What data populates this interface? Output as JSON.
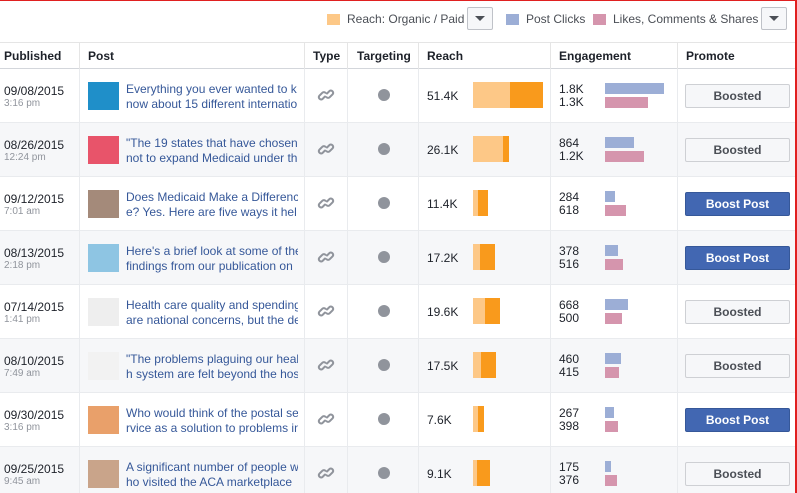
{
  "legend": {
    "reach_label": "Reach: Organic / Paid",
    "clicks_label": "Post Clicks",
    "likes_label": "Likes, Comments & Shares",
    "colors": {
      "organic": "#fdc887",
      "paid": "#f99a1c",
      "clicks": "#9caed6",
      "likes": "#d595ad"
    }
  },
  "columns": {
    "published": "Published",
    "post": "Post",
    "type": "Type",
    "targeting": "Targeting",
    "reach": "Reach",
    "engagement": "Engagement",
    "promote": "Promote"
  },
  "rows": [
    {
      "date": "09/08/2015",
      "time": "3:16 pm",
      "line1": "Everything you ever wanted to k",
      "line2": "now about 15 different internatio",
      "reach": "51.4K",
      "organic": 0.37,
      "paid": 0.33,
      "clicks": "1.8K",
      "likes": "1.3K",
      "clicks_frac": 0.59,
      "likes_frac": 0.43,
      "promote": "Boosted",
      "boosted": true,
      "thumb": "#1f8fc9"
    },
    {
      "date": "08/26/2015",
      "time": "12:24 pm",
      "line1": "\"The 19 states that have chosen",
      "line2": "not to expand Medicaid under th",
      "reach": "26.1K",
      "organic": 0.3,
      "paid": 0.06,
      "clicks": "864",
      "likes": "1.2K",
      "clicks_frac": 0.29,
      "likes_frac": 0.39,
      "promote": "Boosted",
      "boosted": true,
      "thumb": "#e8546a"
    },
    {
      "date": "09/12/2015",
      "time": "7:01 am",
      "line1": "Does Medicaid Make a Differenc",
      "line2": "e? Yes. Here are five ways it hel",
      "reach": "11.4K",
      "organic": 0.05,
      "paid": 0.1,
      "clicks": "284",
      "likes": "618",
      "clicks_frac": 0.1,
      "likes_frac": 0.21,
      "promote": "Boost Post",
      "boosted": false,
      "thumb": "#a48a7a"
    },
    {
      "date": "08/13/2015",
      "time": "2:18 pm",
      "line1": "Here's a brief look at some of the",
      "line2": "findings from our publication on",
      "reach": "17.2K",
      "organic": 0.07,
      "paid": 0.15,
      "clicks": "378",
      "likes": "516",
      "clicks_frac": 0.13,
      "likes_frac": 0.18,
      "promote": "Boost Post",
      "boosted": false,
      "thumb": "#8ec5e3"
    },
    {
      "date": "07/14/2015",
      "time": "1:41 pm",
      "line1": "Health care quality and spending",
      "line2": "are national concerns, but the de",
      "reach": "19.6K",
      "organic": 0.12,
      "paid": 0.15,
      "clicks": "668",
      "likes": "500",
      "clicks_frac": 0.23,
      "likes_frac": 0.17,
      "promote": "Boosted",
      "boosted": true,
      "thumb": "#eeeeee"
    },
    {
      "date": "08/10/2015",
      "time": "7:49 am",
      "line1": "\"The problems plaguing our healt",
      "line2": "h system are felt beyond the hos",
      "reach": "17.5K",
      "organic": 0.08,
      "paid": 0.15,
      "clicks": "460",
      "likes": "415",
      "clicks_frac": 0.16,
      "likes_frac": 0.14,
      "promote": "Boosted",
      "boosted": true,
      "thumb": "#f2f2f2"
    },
    {
      "date": "09/30/2015",
      "time": "3:16 pm",
      "line1": "Who would think of the postal se",
      "line2": "rvice as a solution to problems in",
      "reach": "7.6K",
      "organic": 0.05,
      "paid": 0.06,
      "clicks": "267",
      "likes": "398",
      "clicks_frac": 0.09,
      "likes_frac": 0.13,
      "promote": "Boost Post",
      "boosted": false,
      "thumb": "#e9a06a"
    },
    {
      "date": "09/25/2015",
      "time": "9:45 am",
      "line1": "A significant number of people w",
      "line2": "ho visited the ACA marketplace",
      "reach": "9.1K",
      "organic": 0.04,
      "paid": 0.13,
      "clicks": "175",
      "likes": "376",
      "clicks_frac": 0.06,
      "likes_frac": 0.12,
      "promote": "Boosted",
      "boosted": true,
      "thumb": "#c9a48a"
    }
  ]
}
